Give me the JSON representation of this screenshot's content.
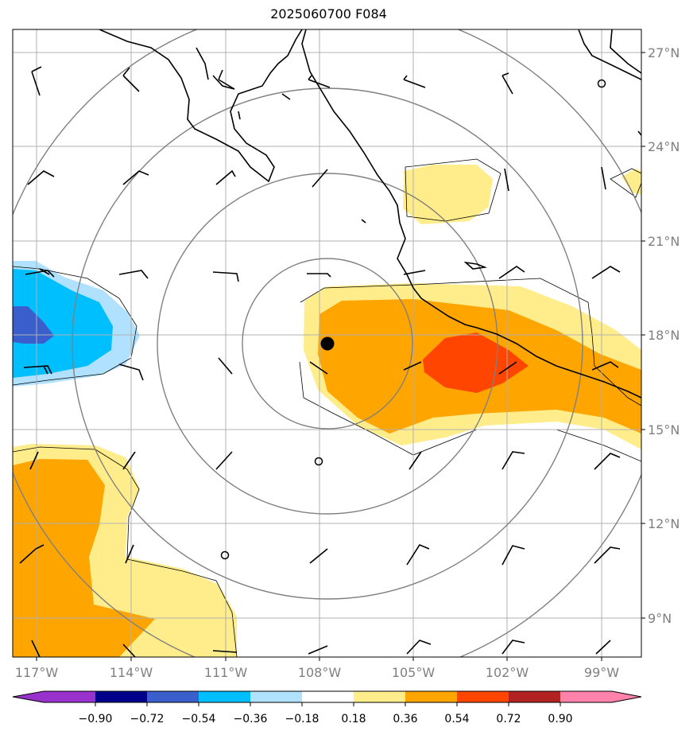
{
  "title": "2025060700 F084",
  "longitude_labels": [
    "117°W",
    "114°W",
    "111°W",
    "108°W",
    "105°W",
    "102°W",
    "99°W"
  ],
  "latitude_labels": [
    "27°N",
    "24°N",
    "21°N",
    "18°N",
    "15°N",
    "12°N",
    "9°N"
  ],
  "colorbar": {
    "ticks": [
      "−0.90",
      "−0.72",
      "−0.54",
      "−0.36",
      "−0.18",
      "0.18",
      "0.36",
      "0.54",
      "0.72",
      "0.90"
    ],
    "colors": [
      "#9932cc",
      "#00008b",
      "#3a5fcd",
      "#00bfff",
      "#b0e2ff",
      "#ffffff",
      "#ffec8b",
      "#ffa500",
      "#ff4500",
      "#b22222",
      "#ff82ab"
    ]
  },
  "colors": {
    "fill_0_18_0_36": "#ffec8b",
    "fill_0_36_0_54": "#ffa500",
    "fill_0_54_0_72": "#ff4500",
    "fill_neg_0_18_0_36": "#b0e2ff",
    "fill_neg_0_36_0_54": "#00bfff",
    "fill_neg_0_54_0_72": "#3a5fcd",
    "rings": "#808080",
    "gridlines": "#b0b0b0",
    "coastline": "#000000"
  },
  "storm_marker": "filled-circle"
}
